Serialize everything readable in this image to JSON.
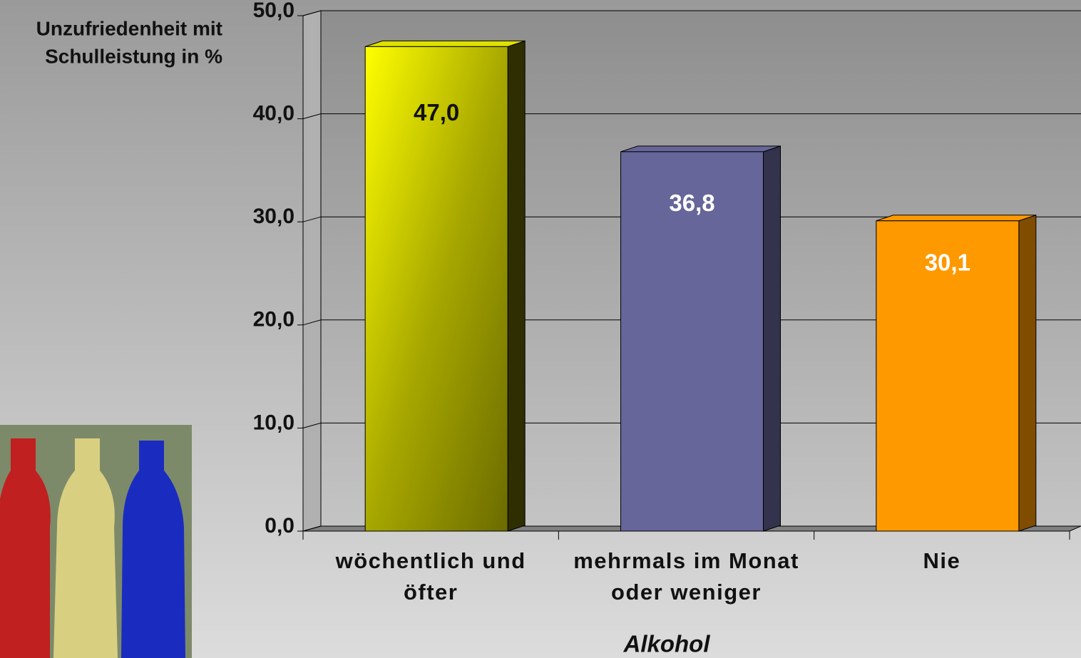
{
  "chart_data": {
    "type": "bar",
    "y_axis_label": [
      "Unzufriedenheit mit",
      "Schulleistung in %"
    ],
    "x_axis_label": "Alkohol",
    "categories": [
      [
        "wöchentlich und",
        "öfter"
      ],
      [
        "mehrmals im Monat",
        "oder weniger"
      ],
      [
        "Nie"
      ]
    ],
    "series": [
      {
        "values": [
          47.0,
          36.8,
          30.1
        ],
        "value_labels": [
          "47,0",
          "36,8",
          "30,1"
        ],
        "colors": [
          "#e0e000",
          "#66669a",
          "#ff9900"
        ]
      }
    ],
    "ylim": [
      0,
      50
    ],
    "yticks": [
      {
        "value": 0,
        "label": "0,0"
      },
      {
        "value": 10,
        "label": "10,0"
      },
      {
        "value": 20,
        "label": "20,0"
      },
      {
        "value": 30,
        "label": "30,0"
      },
      {
        "value": 40,
        "label": "40,0"
      },
      {
        "value": 50,
        "label": "50,0"
      }
    ],
    "grid": true,
    "three_d": true
  }
}
